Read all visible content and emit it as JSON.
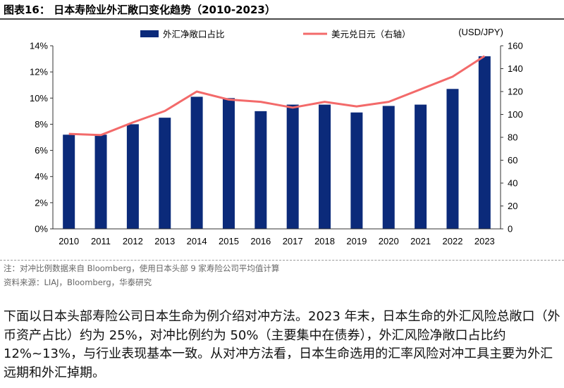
{
  "figure_title": "图表16：  日本寿险业外汇敞口变化趋势（2010-2023）",
  "note": "注：对冲比例数据来自 Bloomberg，使用日本头部 9 家寿险公司平均值计算",
  "source": "资料来源：LIAJ，Bloomberg，华泰研究",
  "body_text": "下面以日本头部寿险公司日本生命为例介绍对冲方法。2023 年末，日本生命的外汇风险总敞口（外币资产占比）约为 25%，对冲比例约为 50%（主要集中在债券），外汇风险净敞口占比约 12%~13%，与行业表现基本一致。从对冲方法看，日本生命选用的汇率风险对冲工具主要为外汇远期和外汇掉期。",
  "chart_data": {
    "type": "bar",
    "categories": [
      "2010",
      "2011",
      "2012",
      "2013",
      "2014",
      "2015",
      "2016",
      "2017",
      "2018",
      "2019",
      "2020",
      "2021",
      "2022",
      "2023"
    ],
    "series": [
      {
        "name": "外汇净敞口占比",
        "type": "bar",
        "axis": "left",
        "color": "#0b2a7a",
        "values": [
          7.2,
          7.2,
          8.0,
          8.5,
          10.1,
          10.0,
          9.0,
          9.5,
          9.5,
          8.9,
          9.4,
          9.5,
          10.7,
          13.2
        ]
      },
      {
        "name": "美元兑日元（右轴）",
        "type": "line",
        "axis": "right",
        "color": "#f36a6a",
        "values": [
          83,
          82,
          93,
          103,
          120,
          113,
          111,
          106,
          111,
          107,
          111,
          122,
          133,
          151
        ]
      }
    ],
    "y_left": {
      "min": 0,
      "max": 14,
      "ticks": [
        "0%",
        "2%",
        "4%",
        "6%",
        "8%",
        "10%",
        "12%",
        "14%"
      ]
    },
    "y_right": {
      "label": "(USD/JPY)",
      "min": 0,
      "max": 160,
      "ticks": [
        "0",
        "20",
        "40",
        "60",
        "80",
        "100",
        "120",
        "140",
        "160"
      ]
    },
    "legend_position": "top"
  }
}
